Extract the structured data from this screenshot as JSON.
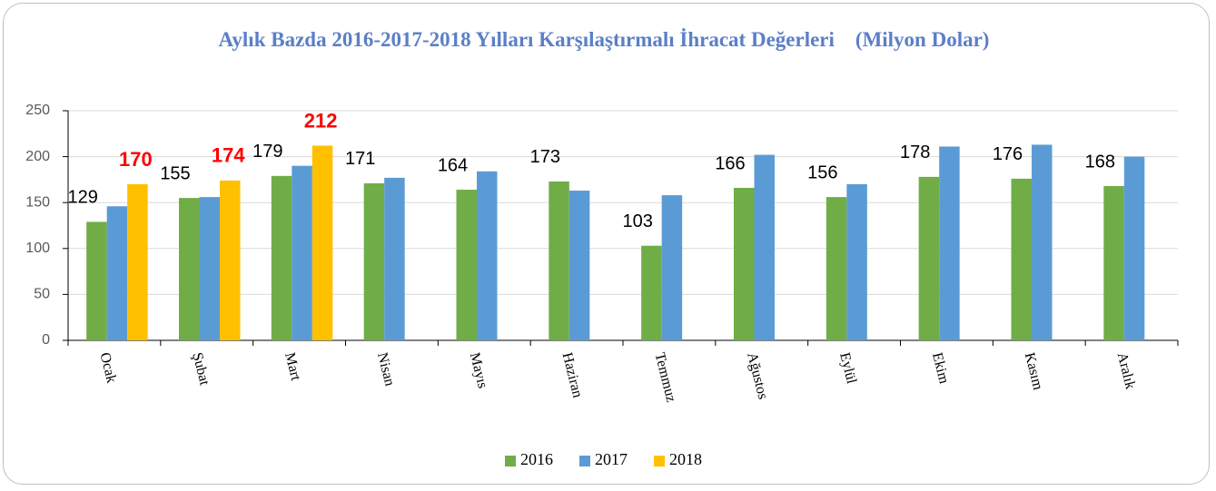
{
  "chart_data": {
    "type": "bar",
    "title": "Aylık Bazda 2016-2017-2018 Yılları Karşılaştırmalı İhracat Değerleri    (Milyon Dolar)",
    "categories": [
      "Ocak",
      "Şubat",
      "Mart",
      "Nisan",
      "Mayıs",
      "Haziran",
      "Temmuz",
      "Ağustos",
      "Eylül",
      "Ekim",
      "Kasım",
      "Aralık"
    ],
    "series": [
      {
        "name": "2016",
        "color": "#70ad47",
        "labels": true,
        "label_color": "#000000",
        "values": [
          129,
          155,
          179,
          171,
          164,
          173,
          103,
          166,
          156,
          178,
          176,
          168
        ]
      },
      {
        "name": "2017",
        "color": "#5b9bd5",
        "labels": false,
        "values": [
          146,
          156,
          190,
          177,
          184,
          163,
          158,
          202,
          170,
          211,
          213,
          200
        ]
      },
      {
        "name": "2018",
        "color": "#ffc000",
        "labels": true,
        "label_color": "#ff0000",
        "values": [
          170,
          174,
          212,
          null,
          null,
          null,
          null,
          null,
          null,
          null,
          null,
          null
        ]
      }
    ],
    "ylim": [
      0,
      250
    ],
    "yticks": [
      0,
      50,
      100,
      150,
      200,
      250
    ],
    "grid": true,
    "legend": "bottom"
  }
}
